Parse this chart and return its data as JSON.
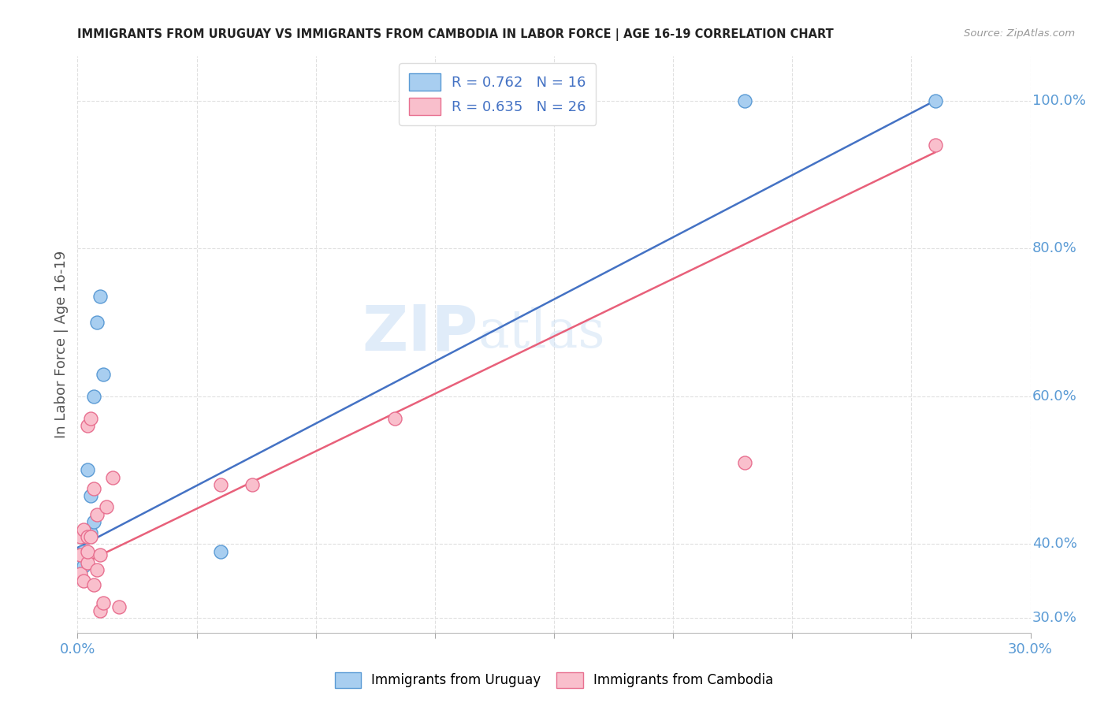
{
  "title": "IMMIGRANTS FROM URUGUAY VS IMMIGRANTS FROM CAMBODIA IN LABOR FORCE | AGE 16-19 CORRELATION CHART",
  "source": "Source: ZipAtlas.com",
  "ylabel": "In Labor Force | Age 16-19",
  "ylabel_right_ticks": [
    "30.0%",
    "40.0%",
    "60.0%",
    "80.0%",
    "100.0%"
  ],
  "ylabel_right_vals": [
    0.3,
    0.4,
    0.6,
    0.8,
    1.0
  ],
  "watermark_zip": "ZIP",
  "watermark_atlas": "atlas",
  "legend_blue_R": "R = 0.762",
  "legend_blue_N": "N = 16",
  "legend_pink_R": "R = 0.635",
  "legend_pink_N": "N = 26",
  "blue_color": "#A8CEF0",
  "pink_color": "#F9BFCC",
  "blue_edge_color": "#5B9BD5",
  "pink_edge_color": "#E87090",
  "blue_line_color": "#4472C4",
  "pink_line_color": "#E8607A",
  "blue_scatter_x": [
    0.001,
    0.001,
    0.002,
    0.002,
    0.003,
    0.003,
    0.004,
    0.004,
    0.005,
    0.005,
    0.006,
    0.007,
    0.008,
    0.045,
    0.21,
    0.27
  ],
  "blue_scatter_y": [
    0.355,
    0.385,
    0.39,
    0.37,
    0.41,
    0.5,
    0.415,
    0.465,
    0.43,
    0.6,
    0.7,
    0.735,
    0.63,
    0.39,
    1.0,
    1.0
  ],
  "pink_scatter_x": [
    0.001,
    0.001,
    0.001,
    0.002,
    0.002,
    0.003,
    0.003,
    0.003,
    0.003,
    0.004,
    0.004,
    0.005,
    0.005,
    0.006,
    0.006,
    0.007,
    0.007,
    0.008,
    0.009,
    0.011,
    0.013,
    0.045,
    0.055,
    0.1,
    0.21,
    0.27
  ],
  "pink_scatter_y": [
    0.36,
    0.385,
    0.41,
    0.35,
    0.42,
    0.375,
    0.39,
    0.41,
    0.56,
    0.41,
    0.57,
    0.345,
    0.475,
    0.365,
    0.44,
    0.31,
    0.385,
    0.32,
    0.45,
    0.49,
    0.315,
    0.48,
    0.48,
    0.57,
    0.51,
    0.94
  ],
  "blue_line_x": [
    0.0,
    0.27
  ],
  "blue_line_y": [
    0.395,
    1.0
  ],
  "pink_line_x": [
    0.0,
    0.27
  ],
  "pink_line_y": [
    0.37,
    0.93
  ],
  "xlim": [
    0.0,
    0.3
  ],
  "ylim": [
    0.28,
    1.06
  ],
  "xtick_positions": [
    0.0,
    0.0375,
    0.075,
    0.1125,
    0.15,
    0.1875,
    0.225,
    0.2625,
    0.3
  ],
  "background_color": "#ffffff",
  "grid_color": "#e0e0e0"
}
